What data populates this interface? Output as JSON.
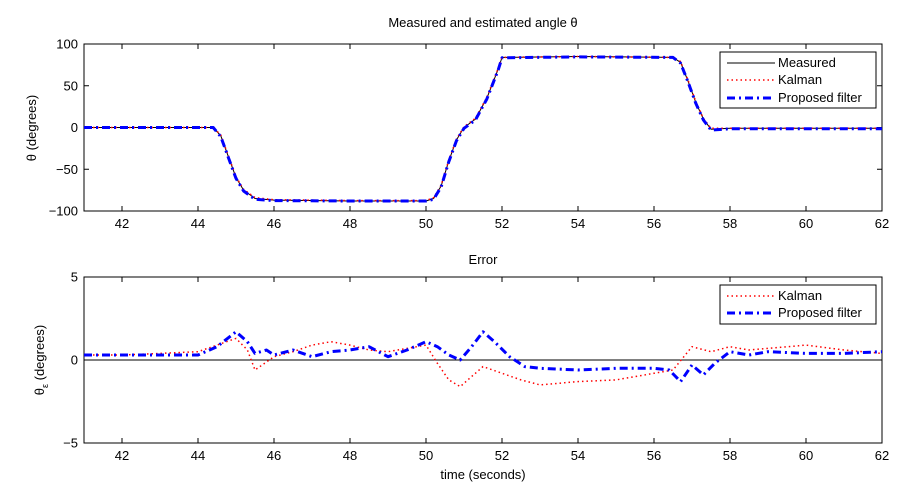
{
  "chart_data": [
    {
      "type": "line",
      "title": "Measured and estimated angle θ",
      "xlabel": "",
      "ylabel": "θ (degrees)",
      "xlim": [
        41,
        62
      ],
      "ylim": [
        -100,
        100
      ],
      "xticks": [
        42,
        44,
        46,
        48,
        50,
        52,
        54,
        56,
        58,
        60,
        62
      ],
      "yticks": [
        -100,
        -50,
        0,
        50,
        100
      ],
      "ytick_labels": [
        "−100",
        "−50",
        "0",
        "50",
        "100"
      ],
      "grid": false,
      "legend_position": "top-right",
      "series": [
        {
          "name": "Measured",
          "color": "#000000",
          "style": "solid",
          "x": [
            41,
            44.4,
            44.6,
            44.8,
            45.0,
            45.2,
            45.5,
            46,
            48,
            50.0,
            50.2,
            50.4,
            50.6,
            50.8,
            51.0,
            51.3,
            51.6,
            51.9,
            52,
            54,
            56.5,
            56.7,
            56.9,
            57.1,
            57.3,
            57.5,
            58,
            60,
            62
          ],
          "y": [
            0,
            0,
            -10,
            -35,
            -60,
            -75,
            -85,
            -87,
            -88,
            -88,
            -85,
            -70,
            -40,
            -15,
            0,
            10,
            35,
            70,
            84,
            85,
            84,
            78,
            55,
            30,
            10,
            -2,
            -1,
            -1,
            -1
          ]
        },
        {
          "name": "Kalman",
          "color": "#ff0000",
          "style": "dotted",
          "x": [
            41,
            44.4,
            44.6,
            44.8,
            45.0,
            45.2,
            45.5,
            46,
            48,
            50.0,
            50.2,
            50.4,
            50.6,
            50.8,
            51.0,
            51.3,
            51.6,
            51.9,
            52,
            54,
            56.5,
            56.7,
            56.9,
            57.1,
            57.3,
            57.5,
            58,
            60,
            62
          ],
          "y": [
            0,
            0,
            -9,
            -34,
            -59,
            -74,
            -84,
            -86.5,
            -87.5,
            -87.5,
            -84,
            -69,
            -39,
            -14,
            1,
            11,
            36,
            71,
            84,
            85,
            84,
            79,
            56,
            31,
            11,
            -1,
            -1,
            -1,
            -1
          ]
        },
        {
          "name": "Proposed filter",
          "color": "#0000ff",
          "style": "dashdot",
          "x": [
            41,
            44.4,
            44.6,
            44.8,
            45.0,
            45.2,
            45.5,
            46,
            48,
            50.0,
            50.2,
            50.4,
            50.6,
            50.8,
            51.0,
            51.3,
            51.6,
            51.9,
            52,
            54,
            56.5,
            56.7,
            56.9,
            57.1,
            57.3,
            57.5,
            58,
            60,
            62
          ],
          "y": [
            0,
            0,
            -11,
            -36,
            -61,
            -76,
            -86,
            -87.5,
            -88,
            -88,
            -86,
            -71,
            -41,
            -16,
            -1,
            9,
            34,
            69,
            83.5,
            84.5,
            84,
            77,
            54,
            29,
            9,
            -3,
            -1.5,
            -1.5,
            -1.5
          ]
        }
      ]
    },
    {
      "type": "line",
      "title": "Error",
      "xlabel": "time (seconds)",
      "ylabel": "θ",
      "ylabel_subscript": "ε",
      "ylabel_suffix": " (degrees)",
      "xlim": [
        41,
        62
      ],
      "ylim": [
        -5,
        5
      ],
      "xticks": [
        42,
        44,
        46,
        48,
        50,
        52,
        54,
        56,
        58,
        60,
        62
      ],
      "yticks": [
        -5,
        0,
        5
      ],
      "ytick_labels": [
        "−5",
        "0",
        "5"
      ],
      "grid": false,
      "legend_position": "top-right",
      "zero_line": true,
      "series": [
        {
          "name": "Kalman",
          "color": "#ff0000",
          "style": "dotted",
          "x": [
            41,
            42,
            43,
            44,
            44.5,
            45,
            45.3,
            45.5,
            46,
            46.5,
            47,
            47.5,
            48,
            48.5,
            49,
            49.5,
            50,
            50.3,
            50.6,
            50.9,
            51.2,
            51.5,
            52,
            52.5,
            53,
            54,
            55,
            56,
            56.5,
            57,
            57.5,
            58,
            58.5,
            59,
            60,
            61,
            62
          ],
          "y": [
            0.3,
            0.3,
            0.4,
            0.5,
            0.9,
            1.3,
            0.6,
            -0.6,
            0.2,
            0.5,
            0.9,
            1.1,
            0.9,
            0.6,
            0.5,
            0.7,
            0.9,
            -0.2,
            -1.2,
            -1.6,
            -1.0,
            -0.4,
            -0.8,
            -1.2,
            -1.5,
            -1.3,
            -1.2,
            -0.8,
            -0.6,
            0.8,
            0.5,
            0.8,
            0.6,
            0.7,
            0.9,
            0.6,
            0.4
          ]
        },
        {
          "name": "Proposed filter",
          "color": "#0000ff",
          "style": "dashdot",
          "x": [
            41,
            42,
            43,
            44,
            44.5,
            45,
            45.3,
            45.5,
            45.8,
            46,
            46.5,
            47,
            47.5,
            48,
            48.5,
            49,
            49.5,
            50,
            50.3,
            50.6,
            50.9,
            51.2,
            51.5,
            51.8,
            52.2,
            52.6,
            53,
            54,
            55,
            56,
            56.4,
            56.7,
            57,
            57.3,
            57.6,
            58,
            58.5,
            59,
            60,
            61,
            62
          ],
          "y": [
            0.3,
            0.3,
            0.3,
            0.3,
            0.8,
            1.7,
            1.1,
            0.4,
            0.6,
            0.3,
            0.6,
            0.2,
            0.5,
            0.6,
            0.8,
            0.2,
            0.6,
            1.1,
            0.8,
            0.3,
            0.0,
            0.8,
            1.7,
            1.1,
            0.2,
            -0.4,
            -0.5,
            -0.6,
            -0.5,
            -0.5,
            -0.6,
            -1.3,
            -0.3,
            -0.9,
            -0.2,
            0.5,
            0.3,
            0.5,
            0.4,
            0.4,
            0.5
          ]
        }
      ]
    }
  ]
}
